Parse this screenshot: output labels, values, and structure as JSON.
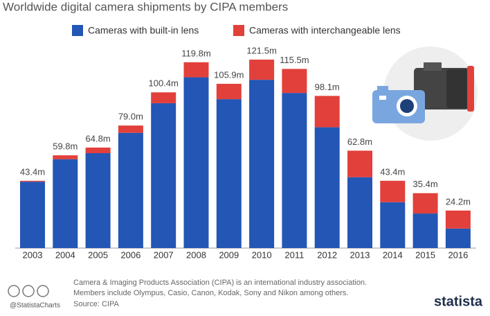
{
  "chart_data": {
    "type": "stacked-bar",
    "title": "Worldwide digital camera shipments by CIPA members",
    "categories": [
      "2003",
      "2004",
      "2005",
      "2006",
      "2007",
      "2008",
      "2009",
      "2010",
      "2011",
      "2012",
      "2013",
      "2014",
      "2015",
      "2016"
    ],
    "series": [
      {
        "name": "Cameras with built-in lens",
        "color": "#2356b5",
        "values": [
          42.8,
          57.3,
          61.2,
          74.3,
          93.4,
          110.1,
          96.0,
          108.5,
          100.0,
          77.9,
          45.7,
          29.6,
          22.3,
          12.6
        ]
      },
      {
        "name": "Cameras with interchangeable lens",
        "color": "#e2403b",
        "values": [
          0.6,
          2.5,
          3.6,
          4.7,
          7.0,
          9.7,
          9.9,
          13.0,
          15.5,
          20.2,
          17.1,
          13.8,
          13.1,
          11.6
        ]
      }
    ],
    "totals": {
      "values": [
        43.4,
        59.8,
        64.8,
        79.0,
        100.4,
        119.8,
        105.9,
        121.5,
        115.5,
        98.1,
        62.8,
        43.4,
        35.4,
        24.2
      ],
      "value_labels": [
        "43.4m",
        "59.8m",
        "64.8m",
        "79.0m",
        "100.4m",
        "119.8m",
        "105.9m",
        "121.5m",
        "115.5m",
        "98.1m",
        "62.8m",
        "43.4m",
        "35.4m",
        "24.2m"
      ]
    },
    "ylim": [
      0,
      130
    ],
    "grid": false,
    "footnote": [
      "Camera & Imaging Products Association (CIPA) is an international industry association.",
      "Members include Olympus, Casio, Canon, Kodak, Sony and Nikon among others."
    ],
    "source": "Source: CIPA",
    "handle": "@StatistaCharts",
    "brand": "statista"
  }
}
